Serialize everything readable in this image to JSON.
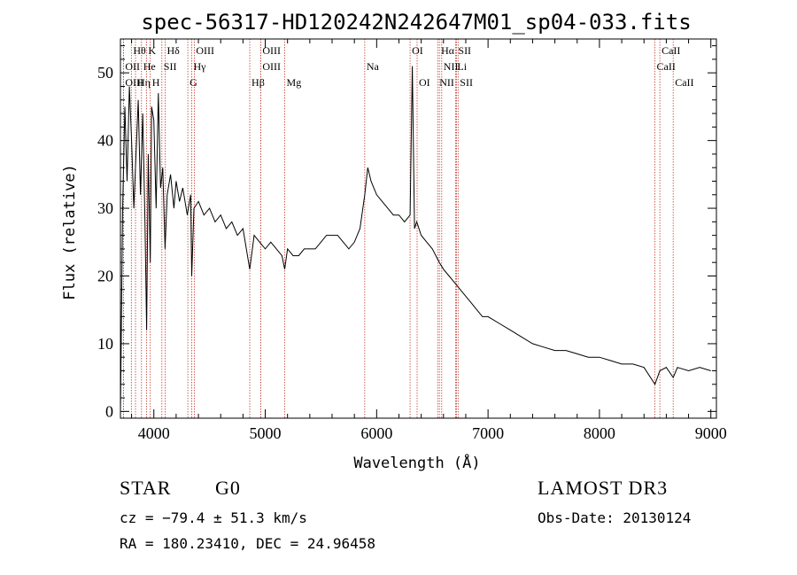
{
  "chart_data": {
    "type": "line",
    "title": "spec-56317-HD120242N242647M01_sp04-033.fits",
    "xlabel": "Wavelength (Å)",
    "ylabel": "Flux (relative)",
    "xlim": [
      3700,
      9050
    ],
    "ylim": [
      -1,
      55
    ],
    "xticks": [
      4000,
      5000,
      6000,
      7000,
      8000,
      9000
    ],
    "yticks": [
      0,
      10,
      20,
      30,
      40,
      50
    ],
    "series": [
      {
        "name": "flux",
        "x": [
          3700,
          3720,
          3740,
          3760,
          3780,
          3800,
          3820,
          3840,
          3860,
          3880,
          3900,
          3920,
          3935,
          3950,
          3968,
          3980,
          4000,
          4020,
          4040,
          4060,
          4080,
          4101,
          4120,
          4150,
          4180,
          4200,
          4230,
          4260,
          4300,
          4330,
          4340,
          4360,
          4400,
          4450,
          4500,
          4550,
          4600,
          4650,
          4700,
          4750,
          4800,
          4861,
          4900,
          4950,
          5000,
          5050,
          5100,
          5150,
          5175,
          5200,
          5250,
          5300,
          5350,
          5400,
          5450,
          5500,
          5550,
          5600,
          5650,
          5700,
          5750,
          5800,
          5850,
          5893,
          5920,
          5950,
          6000,
          6050,
          6100,
          6150,
          6200,
          6250,
          6300,
          6320,
          6340,
          6360,
          6400,
          6450,
          6500,
          6563,
          6600,
          6650,
          6700,
          6750,
          6800,
          6850,
          6900,
          6950,
          7000,
          7100,
          7200,
          7300,
          7400,
          7500,
          7600,
          7700,
          7800,
          7900,
          8000,
          8100,
          8200,
          8300,
          8400,
          8498,
          8542,
          8600,
          8662,
          8700,
          8800,
          8900,
          9000
        ],
        "y": [
          0,
          30,
          45,
          34,
          48,
          40,
          30,
          38,
          46,
          32,
          44,
          28,
          12,
          38,
          22,
          45,
          43,
          30,
          47,
          33,
          36,
          24,
          32,
          35,
          30,
          34,
          31,
          33,
          29,
          32,
          20,
          30,
          31,
          29,
          30,
          28,
          29,
          27,
          28,
          26,
          27,
          21,
          26,
          25,
          24,
          25,
          24,
          23,
          21,
          24,
          23,
          23,
          24,
          24,
          24,
          25,
          26,
          26,
          26,
          25,
          24,
          25,
          27,
          32,
          36,
          34,
          32,
          31,
          30,
          29,
          29,
          28,
          29,
          51,
          27,
          28,
          26,
          25,
          24,
          22,
          21,
          20,
          19,
          18,
          17,
          16,
          15,
          14,
          14,
          13,
          12,
          11,
          10,
          9.5,
          9,
          9,
          8.5,
          8,
          8,
          7.5,
          7,
          7,
          6.5,
          4,
          6,
          6.5,
          5,
          6.5,
          6,
          6.5,
          6
        ]
      }
    ],
    "spectral_lines": [
      {
        "label": "Hθ",
        "wave": 3798,
        "row": 1
      },
      {
        "label": "K",
        "wave": 3934,
        "row": 1
      },
      {
        "label": "Hδ",
        "wave": 4101,
        "row": 1
      },
      {
        "label": "OIII",
        "wave": 4363,
        "row": 1
      },
      {
        "label": "OIII",
        "wave": 4959,
        "row": 1
      },
      {
        "label": "OI",
        "wave": 6300,
        "row": 1
      },
      {
        "label": "Hα",
        "wave": 6563,
        "row": 1
      },
      {
        "label": "SII",
        "wave": 6716,
        "row": 1
      },
      {
        "label": "CaII",
        "wave": 8542,
        "row": 1
      },
      {
        "label": "OII",
        "wave": 3727,
        "row": 2
      },
      {
        "label": "He",
        "wave": 3889,
        "row": 2
      },
      {
        "label": "SII",
        "wave": 4072,
        "row": 2
      },
      {
        "label": "Hγ",
        "wave": 4340,
        "row": 2
      },
      {
        "label": "OIII",
        "wave": 4959,
        "row": 2
      },
      {
        "label": "Na",
        "wave": 5893,
        "row": 2
      },
      {
        "label": "NII",
        "wave": 6584,
        "row": 2
      },
      {
        "label": "Li",
        "wave": 6708,
        "row": 2
      },
      {
        "label": "CaII",
        "wave": 8498,
        "row": 2
      },
      {
        "label": "OIII",
        "wave": 3727,
        "row": 3
      },
      {
        "label": "Hη",
        "wave": 3835,
        "row": 3
      },
      {
        "label": "H",
        "wave": 3968,
        "row": 3
      },
      {
        "label": "G",
        "wave": 4305,
        "row": 3
      },
      {
        "label": "Hβ",
        "wave": 4861,
        "row": 3
      },
      {
        "label": "Mg",
        "wave": 5175,
        "row": 3
      },
      {
        "label": "OI",
        "wave": 6363,
        "row": 3
      },
      {
        "label": "NII",
        "wave": 6548,
        "row": 3
      },
      {
        "label": "SII",
        "wave": 6731,
        "row": 3
      },
      {
        "label": "CaII",
        "wave": 8662,
        "row": 3
      }
    ]
  },
  "info": {
    "object_type": "STAR",
    "subclass": "G0",
    "survey": "LAMOST DR3",
    "redshift": "cz = −79.4 ± 51.3 km/s",
    "obs_date": "Obs-Date: 20130124",
    "coords": "RA = 180.23410, DEC =  24.96458"
  }
}
